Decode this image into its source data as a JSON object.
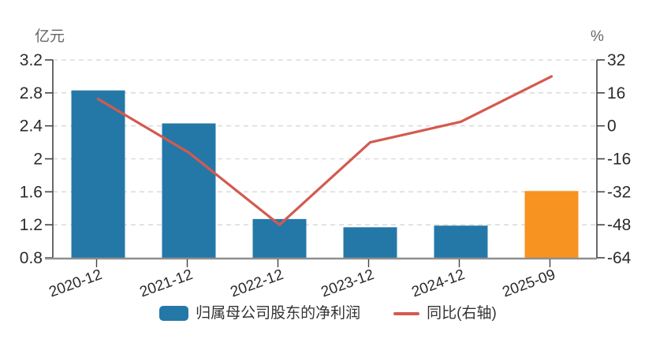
{
  "chart": {
    "colors": {
      "bar": "#2478A8",
      "bar_highlight": "#F79320",
      "line": "#D35A4F",
      "grid": "#DCDCDC",
      "axis": "#444444",
      "bottom_axis": "#8F8F8F",
      "tick_text": "#2B2B2B",
      "unit_text": "#666666"
    },
    "legend": [
      {
        "label": "归属母公司股东的净利润",
        "type": "bar"
      },
      {
        "label": "同比(右轴)",
        "type": "line"
      }
    ]
  },
  "chart_data": {
    "type": "bar+line combo",
    "title": "",
    "categories": [
      "2020-12",
      "2021-12",
      "2022-12",
      "2023-12",
      "2024-12",
      "2025-09"
    ],
    "series": [
      {
        "name": "归属母公司股东的净利润",
        "type": "bar",
        "axis": "left",
        "unit": "亿元",
        "values": [
          2.83,
          2.43,
          1.27,
          1.17,
          1.19,
          1.61
        ]
      },
      {
        "name": "同比(右轴)",
        "type": "line",
        "axis": "right",
        "unit": "%",
        "values": [
          13,
          -13,
          -48,
          -8,
          2,
          24
        ]
      }
    ],
    "left_axis": {
      "label": "亿元",
      "min": 0.8,
      "max": 3.2,
      "tick_labels": [
        "3.2",
        "2.8",
        "2.4",
        "2",
        "1.6",
        "1.2",
        "0.8"
      ]
    },
    "right_axis": {
      "label": "%",
      "min": -64,
      "max": 32,
      "tick_labels": [
        "32",
        "16",
        "0",
        "-16",
        "-32",
        "-48",
        "-64"
      ]
    },
    "grid": "dashed horizontal",
    "legend_position": "bottom",
    "highlight_last_bar": true
  }
}
